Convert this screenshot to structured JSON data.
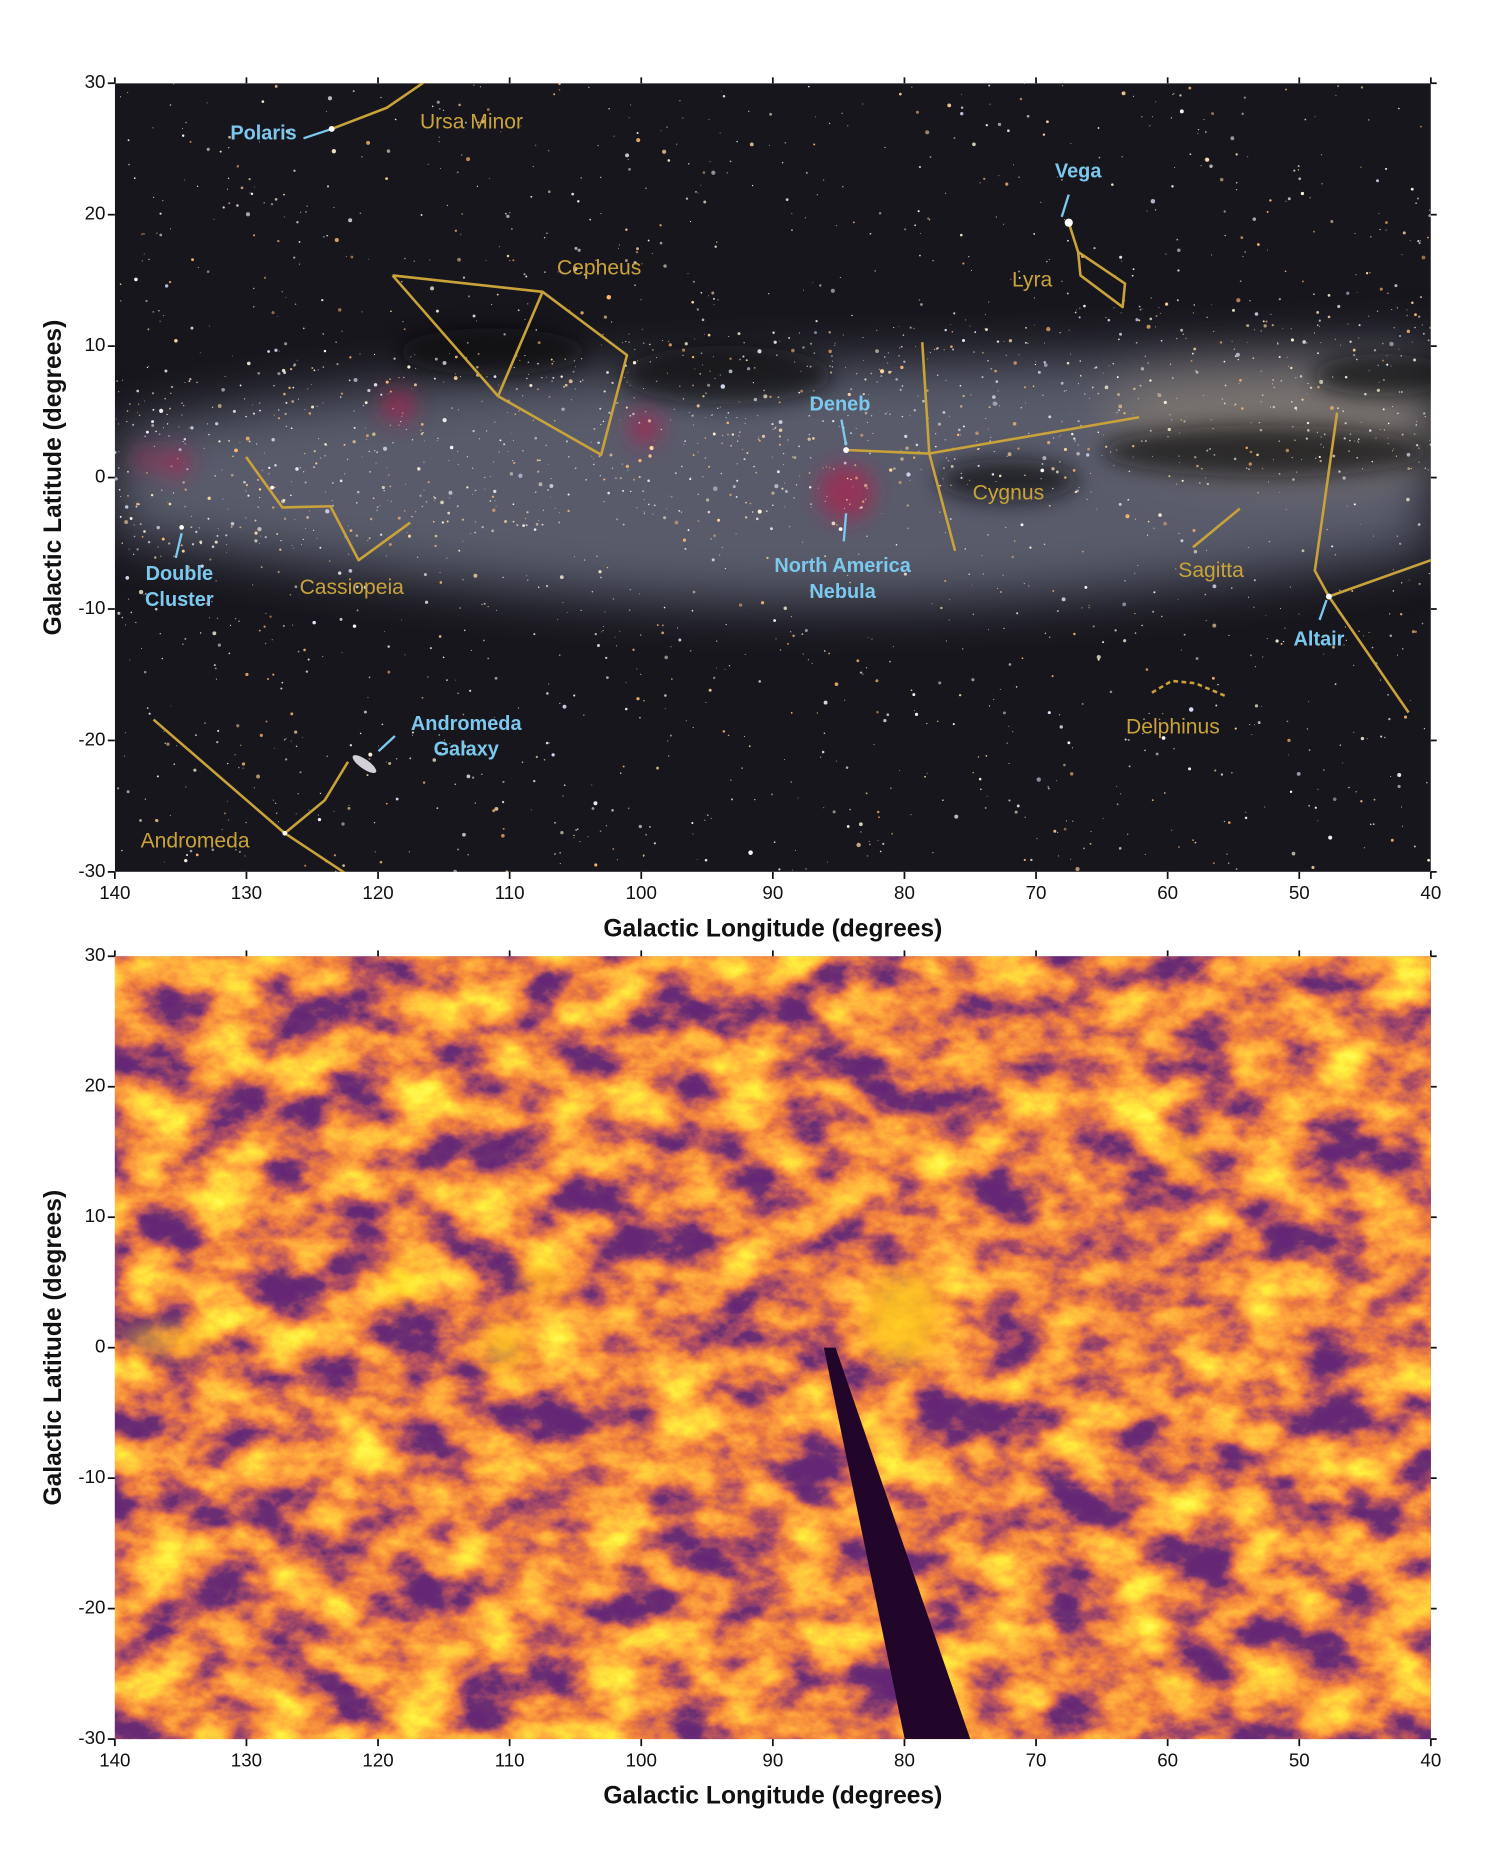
{
  "chart_data": [
    {
      "type": "image",
      "xlabel": "Galactic Longitude (degrees)",
      "ylabel": "Galactic Latitude (degrees)",
      "xlim": [
        140,
        40
      ],
      "ylim": [
        -30,
        30
      ],
      "xticks": [
        140,
        130,
        120,
        110,
        100,
        90,
        80,
        70,
        60,
        50,
        40
      ],
      "yticks": [
        -30,
        -20,
        -10,
        0,
        10,
        20,
        30
      ],
      "annotations": [
        {
          "text": [
            "Polaris"
          ],
          "x": 128.7,
          "y": 26.1,
          "color": "#7cc8ee",
          "kind": "object"
        },
        {
          "text": [
            "Ursa Minor"
          ],
          "x": 112.9,
          "y": 27.0,
          "color": "#c9a33a",
          "kind": "constellation"
        },
        {
          "text": [
            "Vega"
          ],
          "x": 66.8,
          "y": 23.2,
          "color": "#7cc8ee",
          "kind": "object"
        },
        {
          "text": [
            "Cepheus"
          ],
          "x": 103.2,
          "y": 15.9,
          "color": "#c9a33a",
          "kind": "constellation"
        },
        {
          "text": [
            "Lyra"
          ],
          "x": 70.3,
          "y": 15.0,
          "color": "#c9a33a",
          "kind": "constellation"
        },
        {
          "text": [
            "Deneb"
          ],
          "x": 84.9,
          "y": 5.5,
          "color": "#7cc8ee",
          "kind": "object"
        },
        {
          "text": [
            "Cygnus"
          ],
          "x": 72.1,
          "y": -1.2,
          "color": "#c9a33a",
          "kind": "constellation"
        },
        {
          "text": [
            "North America",
            "Nebula"
          ],
          "x": 84.7,
          "y": -7.8,
          "color": "#7cc8ee",
          "kind": "object"
        },
        {
          "text": [
            "Double",
            "Cluster"
          ],
          "x": 135.1,
          "y": -8.4,
          "color": "#7cc8ee",
          "kind": "object"
        },
        {
          "text": [
            "Cassiopeia"
          ],
          "x": 122.0,
          "y": -8.4,
          "color": "#c9a33a",
          "kind": "constellation"
        },
        {
          "text": [
            "Sagitta"
          ],
          "x": 56.7,
          "y": -7.1,
          "color": "#c9a33a",
          "kind": "constellation"
        },
        {
          "text": [
            "Altair"
          ],
          "x": 48.5,
          "y": -12.4,
          "color": "#7cc8ee",
          "kind": "object"
        },
        {
          "text": [
            "Delphinus"
          ],
          "x": 59.6,
          "y": -19.0,
          "color": "#c9a33a",
          "kind": "constellation"
        },
        {
          "text": [
            "Andromeda",
            "Galaxy"
          ],
          "x": 113.3,
          "y": -19.8,
          "color": "#7cc8ee",
          "kind": "object"
        },
        {
          "text": [
            "Andromeda"
          ],
          "x": 133.9,
          "y": -27.7,
          "color": "#c9a33a",
          "kind": "constellation"
        }
      ]
    },
    {
      "type": "image",
      "xlabel": "Galactic Longitude (degrees)",
      "ylabel": "Galactic Latitude (degrees)",
      "xlim": [
        140,
        40
      ],
      "ylim": [
        -30,
        30
      ],
      "xticks": [
        140,
        130,
        120,
        110,
        100,
        90,
        80,
        70,
        60,
        50,
        40
      ],
      "yticks": [
        -30,
        -20,
        -10,
        0,
        10,
        20,
        30
      ]
    }
  ]
}
